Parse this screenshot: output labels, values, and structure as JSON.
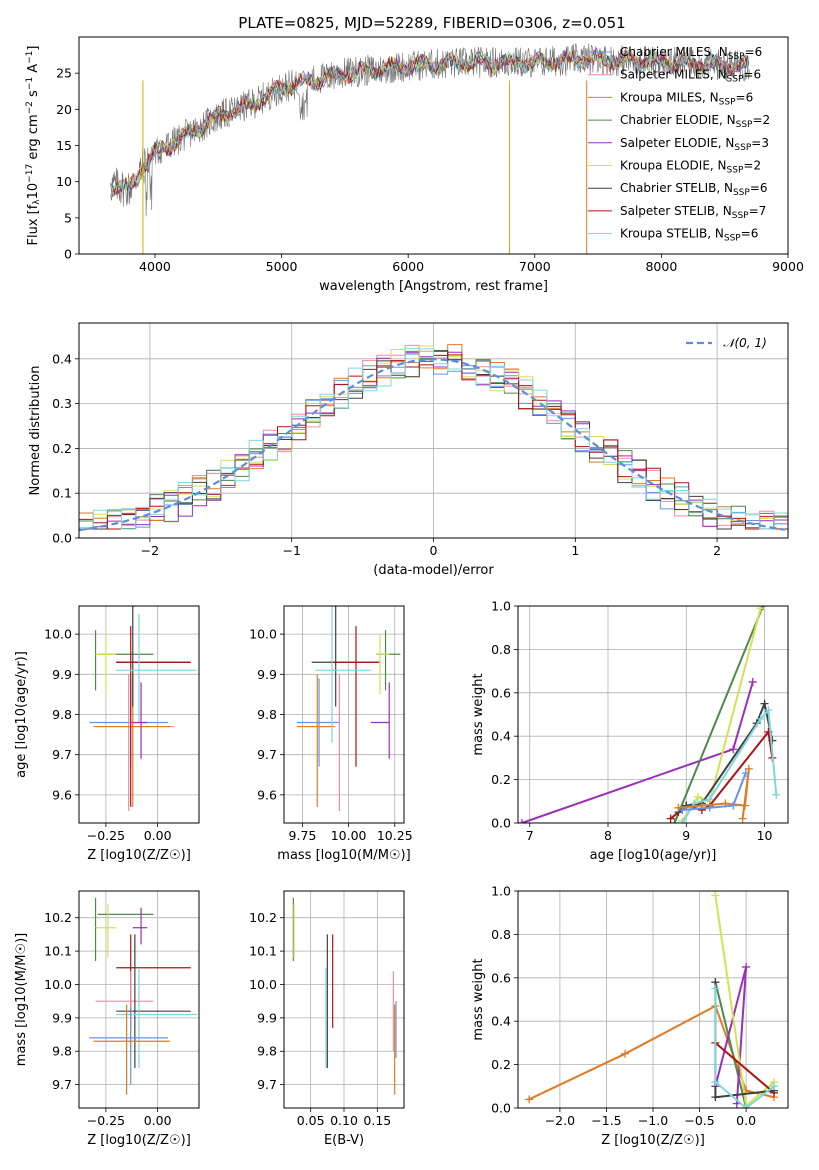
{
  "figure_title": "PLATE=0825, MJD=52289, FIBERID=0306, z=0.051",
  "colors": {
    "Chabrier MILES": "#6495ed",
    "Salpeter MILES": "#f08ca8",
    "Kroupa MILES": "#e07b24",
    "Chabrier ELODIE": "#4f8a4a",
    "Salpeter ELODIE": "#9b2fb8",
    "Kroupa ELODIE": "#d4e157",
    "Chabrier STELIB": "#404040",
    "Salpeter STELIB": "#b01010",
    "Kroupa STELIB": "#7fd6dd"
  },
  "chart_data": [
    {
      "id": "spectrum",
      "type": "line",
      "xlabel": "wavelength [Angstrom, rest frame]",
      "ylabel_parts": {
        "a": "Flux [f",
        "b": "λ",
        "c": "10",
        "d": "−17",
        "e": " erg cm",
        "f": "−2",
        "g": " s",
        "h": "−1",
        "i": " A",
        "j": "−1",
        "k": "]"
      },
      "xlim": [
        3400,
        9000
      ],
      "ylim": [
        0,
        30
      ],
      "xticks": [
        4000,
        5000,
        6000,
        7000,
        8000,
        9000
      ],
      "yticks": [
        0,
        5,
        10,
        15,
        20,
        25
      ],
      "legend_placement": "right",
      "legend": [
        {
          "name": "Chabrier MILES",
          "label": "Chabrier MILES, N",
          "sub": "SSP",
          "suffix": "=6"
        },
        {
          "name": "Salpeter MILES",
          "label": "Salpeter MILES, N",
          "sub": "SSP",
          "suffix": "=6"
        },
        {
          "name": "Kroupa MILES",
          "label": "Kroupa MILES, N",
          "sub": "SSP",
          "suffix": "=6"
        },
        {
          "name": "Chabrier ELODIE",
          "label": "Chabrier ELODIE, N",
          "sub": "SSP",
          "suffix": "=2"
        },
        {
          "name": "Salpeter ELODIE",
          "label": "Salpeter ELODIE, N",
          "sub": "SSP",
          "suffix": "=3"
        },
        {
          "name": "Kroupa ELODIE",
          "label": "Kroupa ELODIE, N",
          "sub": "SSP",
          "suffix": "=2"
        },
        {
          "name": "Chabrier STELIB",
          "label": "Chabrier STELIB, N",
          "sub": "SSP",
          "suffix": "=6"
        },
        {
          "name": "Salpeter STELIB",
          "label": "Salpeter STELIB, N",
          "sub": "SSP",
          "suffix": "=7"
        },
        {
          "name": "Kroupa STELIB",
          "label": "Kroupa STELIB, N",
          "sub": "SSP",
          "suffix": "=6"
        }
      ],
      "continuum": [
        [
          3650,
          9.5
        ],
        [
          3800,
          9
        ],
        [
          3900,
          12
        ],
        [
          4000,
          14
        ],
        [
          4200,
          16
        ],
        [
          4500,
          19
        ],
        [
          4800,
          21
        ],
        [
          5000,
          23
        ],
        [
          5500,
          25
        ],
        [
          6000,
          26
        ],
        [
          6500,
          26.5
        ],
        [
          7000,
          26.5
        ],
        [
          7400,
          27
        ],
        [
          8000,
          26.5
        ],
        [
          8700,
          26
        ]
      ]
    },
    {
      "id": "residuals",
      "type": "line",
      "xlabel": "(data-model)/error",
      "ylabel": "Normed distribution",
      "xlim": [
        -2.5,
        2.5
      ],
      "ylim": [
        0,
        0.48
      ],
      "xticks": [
        -2,
        -1,
        0,
        1,
        2
      ],
      "xtick_labels": [
        "−2",
        "−1",
        "0",
        "1",
        "2"
      ],
      "yticks": [
        0.0,
        0.1,
        0.2,
        0.3,
        0.4
      ],
      "ytick_labels": [
        "0.0",
        "0.1",
        "0.2",
        "0.3",
        "0.4"
      ],
      "grid": true,
      "legend_placement": "top-right",
      "gaussian_label": "𝒩(0, 1)",
      "gaussian_color": "#5a8fde"
    },
    {
      "id": "age-vs-Z",
      "type": "scatter",
      "xlabel": "Z [log10(Z/Z☉)]",
      "ylabel": "age [log10(age/yr)]",
      "xlim": [
        -0.38,
        0.2
      ],
      "ylim": [
        9.53,
        10.07
      ],
      "xticks": [
        -0.25,
        0.0
      ],
      "xtick_labels": [
        "−0.25",
        "0.00"
      ],
      "yticks": [
        9.6,
        9.7,
        9.8,
        9.9,
        10.0
      ],
      "ytick_labels": [
        "9.6",
        "9.7",
        "9.8",
        "9.9",
        "10.0"
      ],
      "grid": true
    },
    {
      "id": "age-vs-mass",
      "type": "scatter",
      "xlabel": "mass [log10(M/M☉)]",
      "xlim": [
        9.65,
        10.3
      ],
      "ylim": [
        9.53,
        10.07
      ],
      "xticks": [
        9.75,
        10.0,
        10.25
      ],
      "xtick_labels": [
        "9.75",
        "10.00",
        "10.25"
      ],
      "yticks": [
        9.6,
        9.7,
        9.8,
        9.9,
        10.0
      ],
      "ytick_labels": [
        "9.6",
        "9.7",
        "9.8",
        "9.9",
        "10.0"
      ],
      "grid": true
    },
    {
      "id": "massweight-vs-age",
      "type": "line",
      "xlabel": "age [log10(age/yr)]",
      "ylabel": "mass weight",
      "xlim": [
        6.85,
        10.3
      ],
      "ylim": [
        0,
        1.0
      ],
      "xticks": [
        7,
        8,
        9,
        10
      ],
      "xtick_labels": [
        "7",
        "8",
        "9",
        "10"
      ],
      "yticks": [
        0.0,
        0.2,
        0.4,
        0.6,
        0.8,
        1.0
      ],
      "ytick_labels": [
        "0.0",
        "0.2",
        "0.4",
        "0.6",
        "0.8",
        "1.0"
      ],
      "grid": true,
      "series": [
        {
          "name": "Salpeter ELODIE",
          "x": [
            6.9,
            9.6,
            9.85
          ],
          "y": [
            0.0,
            0.34,
            0.65
          ]
        },
        {
          "name": "Chabrier ELODIE",
          "x": [
            8.85,
            9.98
          ],
          "y": [
            0.0,
            1.0
          ]
        },
        {
          "name": "Kroupa ELODIE",
          "x": [
            8.95,
            9.15,
            9.3,
            9.95
          ],
          "y": [
            0.01,
            0.12,
            0.1,
            0.99
          ]
        },
        {
          "name": "Salpeter STELIB",
          "x": [
            8.8,
            9.0,
            9.2,
            9.3,
            10.05,
            10.1
          ],
          "y": [
            0.02,
            0.08,
            0.06,
            0.08,
            0.42,
            0.3
          ]
        },
        {
          "name": "Chabrier STELIB",
          "x": [
            8.9,
            9.0,
            9.2,
            9.9,
            10.0,
            10.1
          ],
          "y": [
            0.05,
            0.08,
            0.09,
            0.46,
            0.55,
            0.38
          ]
        },
        {
          "name": "Kroupa STELIB",
          "x": [
            8.95,
            9.1,
            9.3,
            9.95,
            10.05,
            10.15
          ],
          "y": [
            0.0,
            0.09,
            0.11,
            0.48,
            0.52,
            0.13
          ]
        },
        {
          "name": "Kroupa MILES",
          "x": [
            8.9,
            9.2,
            9.5,
            9.75,
            9.8,
            9.72
          ],
          "y": [
            0.07,
            0.08,
            0.09,
            0.08,
            0.25,
            0.02
          ]
        },
        {
          "name": "Chabrier MILES",
          "x": [
            8.95,
            9.3,
            9.6,
            9.76
          ],
          "y": [
            0.06,
            0.07,
            0.08,
            0.23
          ]
        }
      ]
    },
    {
      "id": "mass-vs-Z",
      "type": "scatter",
      "xlabel": "Z [log10(Z/Z☉)]",
      "ylabel": "mass [log10(M/M☉)]",
      "xlim": [
        -0.38,
        0.2
      ],
      "ylim": [
        9.63,
        10.28
      ],
      "xticks": [
        -0.25,
        0.0
      ],
      "xtick_labels": [
        "−0.25",
        "0.00"
      ],
      "yticks": [
        9.7,
        9.8,
        9.9,
        10.0,
        10.1,
        10.2
      ],
      "ytick_labels": [
        "9.7",
        "9.8",
        "9.9",
        "10.0",
        "10.1",
        "10.2"
      ],
      "grid": true
    },
    {
      "id": "mass-vs-ebv",
      "type": "scatter",
      "xlabel": "E(B-V)",
      "xlim": [
        0.01,
        0.19
      ],
      "ylim": [
        9.63,
        10.28
      ],
      "xticks": [
        0.05,
        0.1,
        0.15
      ],
      "xtick_labels": [
        "0.05",
        "0.10",
        "0.15"
      ],
      "yticks": [
        9.7,
        9.8,
        9.9,
        10.0,
        10.1,
        10.2
      ],
      "ytick_labels": [
        "9.7",
        "9.8",
        "9.9",
        "10.0",
        "10.1",
        "10.2"
      ],
      "grid": true
    },
    {
      "id": "massweight-vs-Z",
      "type": "line",
      "xlabel": "Z [log10(Z/Z☉)]",
      "ylabel": "mass weight",
      "xlim": [
        -2.45,
        0.45
      ],
      "ylim": [
        0,
        1.0
      ],
      "xticks": [
        -2.0,
        -1.5,
        -1.0,
        -0.5,
        0.0
      ],
      "xtick_labels": [
        "−2.0",
        "−1.5",
        "−1.0",
        "−0.5",
        "0.0"
      ],
      "yticks": [
        0.0,
        0.2,
        0.4,
        0.6,
        0.8,
        1.0
      ],
      "ytick_labels": [
        "0.0",
        "0.2",
        "0.4",
        "0.6",
        "0.8",
        "1.0"
      ],
      "grid": true,
      "series": [
        {
          "name": "Kroupa MILES",
          "x": [
            -2.33,
            -1.3,
            -0.33,
            0.0,
            0.3
          ],
          "y": [
            0.04,
            0.25,
            0.47,
            0.08,
            0.05
          ]
        },
        {
          "name": "Chabrier ELODIE",
          "x": [
            -0.33,
            0.0
          ],
          "y": [
            0.58,
            0.0
          ]
        },
        {
          "name": "Salpeter ELODIE",
          "x": [
            -0.33,
            0.0,
            -0.1
          ],
          "y": [
            0.1,
            0.65,
            0.02
          ]
        },
        {
          "name": "Kroupa ELODIE",
          "x": [
            -0.33,
            0.0,
            0.3
          ],
          "y": [
            0.98,
            0.01,
            0.12
          ]
        },
        {
          "name": "Salpeter STELIB",
          "x": [
            -0.33,
            0.3
          ],
          "y": [
            0.3,
            0.07
          ]
        },
        {
          "name": "Chabrier STELIB",
          "x": [
            -0.33,
            -0.33,
            0.3
          ],
          "y": [
            0.58,
            0.05,
            0.08
          ]
        },
        {
          "name": "Kroupa STELIB",
          "x": [
            -0.33,
            -0.33,
            0.0,
            0.3
          ],
          "y": [
            0.55,
            0.12,
            0.0,
            0.1
          ]
        }
      ]
    }
  ]
}
